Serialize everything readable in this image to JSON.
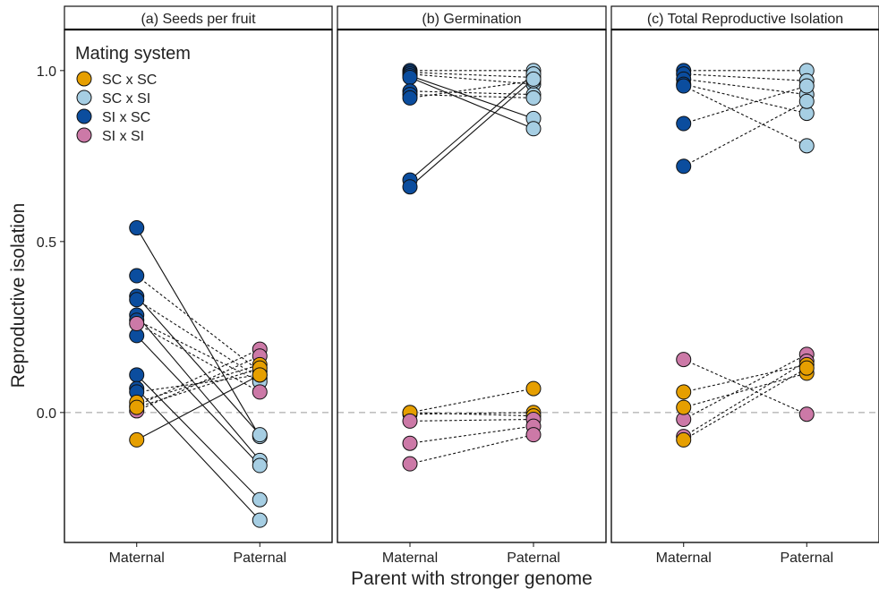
{
  "y_axis_label": "Reproductive isolation",
  "x_axis_label": "Parent with stronger genome",
  "legend": {
    "title": "Mating system",
    "items": [
      {
        "label": "SC x SC",
        "color": "#E69F00"
      },
      {
        "label": "SC x SI",
        "color": "#A6CEE3"
      },
      {
        "label": "SI x SC",
        "color": "#0B4D9E"
      },
      {
        "label": "SI x SI",
        "color": "#CC79A7"
      }
    ]
  },
  "chart_data": [
    {
      "type": "scatter",
      "title": "(a) Seeds per fruit",
      "categories": [
        "Maternal",
        "Paternal"
      ],
      "ylim": [
        -0.38,
        1.12
      ],
      "yticks": [
        0.0,
        0.5,
        1.0
      ],
      "ytick_labels": [
        "0.0",
        "0.5",
        "1.0"
      ],
      "reference_line": 0,
      "pairs": [
        {
          "group": "SI x SC",
          "maternal": 0.54,
          "paternal": -0.07,
          "linestyle": "solid"
        },
        {
          "group": "SI x SC",
          "maternal": 0.4,
          "paternal": 0.12,
          "linestyle": "dashed"
        },
        {
          "group": "SI x SC",
          "maternal": 0.34,
          "paternal": -0.065,
          "linestyle": "solid"
        },
        {
          "group": "SI x SC",
          "maternal": 0.33,
          "paternal": 0.1,
          "linestyle": "dashed"
        },
        {
          "group": "SI x SC",
          "maternal": 0.285,
          "paternal": -0.14,
          "linestyle": "solid"
        },
        {
          "group": "SI x SC",
          "maternal": 0.27,
          "paternal": 0.09,
          "linestyle": "dashed"
        },
        {
          "group": "SI x SC",
          "maternal": 0.225,
          "paternal": -0.155,
          "linestyle": "solid"
        },
        {
          "group": "SI x SC",
          "maternal": 0.11,
          "paternal": -0.255,
          "linestyle": "solid"
        },
        {
          "group": "SI x SC",
          "maternal": 0.07,
          "paternal": -0.315,
          "linestyle": "solid"
        },
        {
          "group": "SI x SC",
          "maternal": 0.06,
          "paternal": 0.11,
          "linestyle": "dashed"
        },
        {
          "group": "SI x SI",
          "maternal": 0.26,
          "paternal": 0.06,
          "linestyle": "dashed"
        },
        {
          "group": "SI x SI",
          "maternal": 0.02,
          "paternal": 0.185,
          "linestyle": "dashed"
        },
        {
          "group": "SI x SI",
          "maternal": 0.005,
          "paternal": 0.165,
          "linestyle": "dashed"
        },
        {
          "group": "SC x SC",
          "maternal": 0.03,
          "paternal": 0.14,
          "linestyle": "dashed"
        },
        {
          "group": "SC x SC",
          "maternal": 0.015,
          "paternal": 0.13,
          "linestyle": "dashed"
        },
        {
          "group": "SC x SC",
          "maternal": -0.08,
          "paternal": 0.11,
          "linestyle": "solid"
        }
      ]
    },
    {
      "type": "scatter",
      "title": "(b) Germination",
      "categories": [
        "Maternal",
        "Paternal"
      ],
      "ylim": [
        -0.38,
        1.12
      ],
      "yticks": [
        0.0,
        0.5,
        1.0
      ],
      "ytick_labels": [
        "0.0",
        "0.5",
        "1.0"
      ],
      "reference_line": 0,
      "pairs": [
        {
          "group": "SI x SC",
          "maternal": 1.0,
          "paternal": 1.0,
          "linestyle": "dashed"
        },
        {
          "group": "SI x SC",
          "maternal": 0.995,
          "paternal": 0.98,
          "linestyle": "dashed"
        },
        {
          "group": "SI x SC",
          "maternal": 0.99,
          "paternal": 0.96,
          "linestyle": "dashed"
        },
        {
          "group": "SI x SC",
          "maternal": 0.985,
          "paternal": 0.86,
          "linestyle": "solid"
        },
        {
          "group": "SI x SC",
          "maternal": 0.98,
          "paternal": 0.83,
          "linestyle": "solid"
        },
        {
          "group": "SI x SC",
          "maternal": 0.94,
          "paternal": 0.93,
          "linestyle": "dashed"
        },
        {
          "group": "SI x SC",
          "maternal": 0.93,
          "paternal": 0.92,
          "linestyle": "dashed"
        },
        {
          "group": "SI x SC",
          "maternal": 0.92,
          "paternal": 0.97,
          "linestyle": "dashed"
        },
        {
          "group": "SI x SC",
          "maternal": 0.68,
          "paternal": 0.99,
          "linestyle": "solid"
        },
        {
          "group": "SI x SC",
          "maternal": 0.66,
          "paternal": 0.975,
          "linestyle": "solid"
        },
        {
          "group": "SC x SC",
          "maternal": 0.0,
          "paternal": 0.07,
          "linestyle": "dashed"
        },
        {
          "group": "SC x SC",
          "maternal": -0.005,
          "paternal": 0.0,
          "linestyle": "dashed"
        },
        {
          "group": "SC x SC",
          "maternal": 0.0,
          "paternal": -0.01,
          "linestyle": "dashed"
        },
        {
          "group": "SI x SI",
          "maternal": -0.025,
          "paternal": -0.02,
          "linestyle": "dashed"
        },
        {
          "group": "SI x SI",
          "maternal": -0.09,
          "paternal": -0.04,
          "linestyle": "dashed"
        },
        {
          "group": "SI x SI",
          "maternal": -0.15,
          "paternal": -0.065,
          "linestyle": "dashed"
        }
      ]
    },
    {
      "type": "scatter",
      "title": "(c) Total Reproductive Isolation",
      "categories": [
        "Maternal",
        "Paternal"
      ],
      "ylim": [
        -0.38,
        1.12
      ],
      "yticks": [
        0.0,
        0.5,
        1.0
      ],
      "ytick_labels": [
        "0.0",
        "0.5",
        "1.0"
      ],
      "reference_line": 0,
      "pairs": [
        {
          "group": "SI x SC",
          "maternal": 1.0,
          "paternal": 1.0,
          "linestyle": "dashed"
        },
        {
          "group": "SI x SC",
          "maternal": 0.99,
          "paternal": 0.97,
          "linestyle": "dashed"
        },
        {
          "group": "SI x SC",
          "maternal": 0.975,
          "paternal": 0.93,
          "linestyle": "dashed"
        },
        {
          "group": "SI x SC",
          "maternal": 0.96,
          "paternal": 0.875,
          "linestyle": "dashed"
        },
        {
          "group": "SI x SC",
          "maternal": 0.955,
          "paternal": 0.78,
          "linestyle": "dashed"
        },
        {
          "group": "SI x SC",
          "maternal": 0.845,
          "paternal": 0.955,
          "linestyle": "dashed"
        },
        {
          "group": "SI x SC",
          "maternal": 0.72,
          "paternal": 0.91,
          "linestyle": "dashed"
        },
        {
          "group": "SI x SI",
          "maternal": 0.155,
          "paternal": -0.005,
          "linestyle": "dashed"
        },
        {
          "group": "SI x SI",
          "maternal": -0.02,
          "paternal": 0.17,
          "linestyle": "dashed"
        },
        {
          "group": "SI x SI",
          "maternal": -0.07,
          "paternal": 0.15,
          "linestyle": "dashed"
        },
        {
          "group": "SC x SC",
          "maternal": 0.06,
          "paternal": 0.14,
          "linestyle": "dashed"
        },
        {
          "group": "SC x SC",
          "maternal": 0.015,
          "paternal": 0.115,
          "linestyle": "dashed"
        },
        {
          "group": "SC x SC",
          "maternal": -0.08,
          "paternal": 0.13,
          "linestyle": "dashed"
        }
      ]
    }
  ]
}
